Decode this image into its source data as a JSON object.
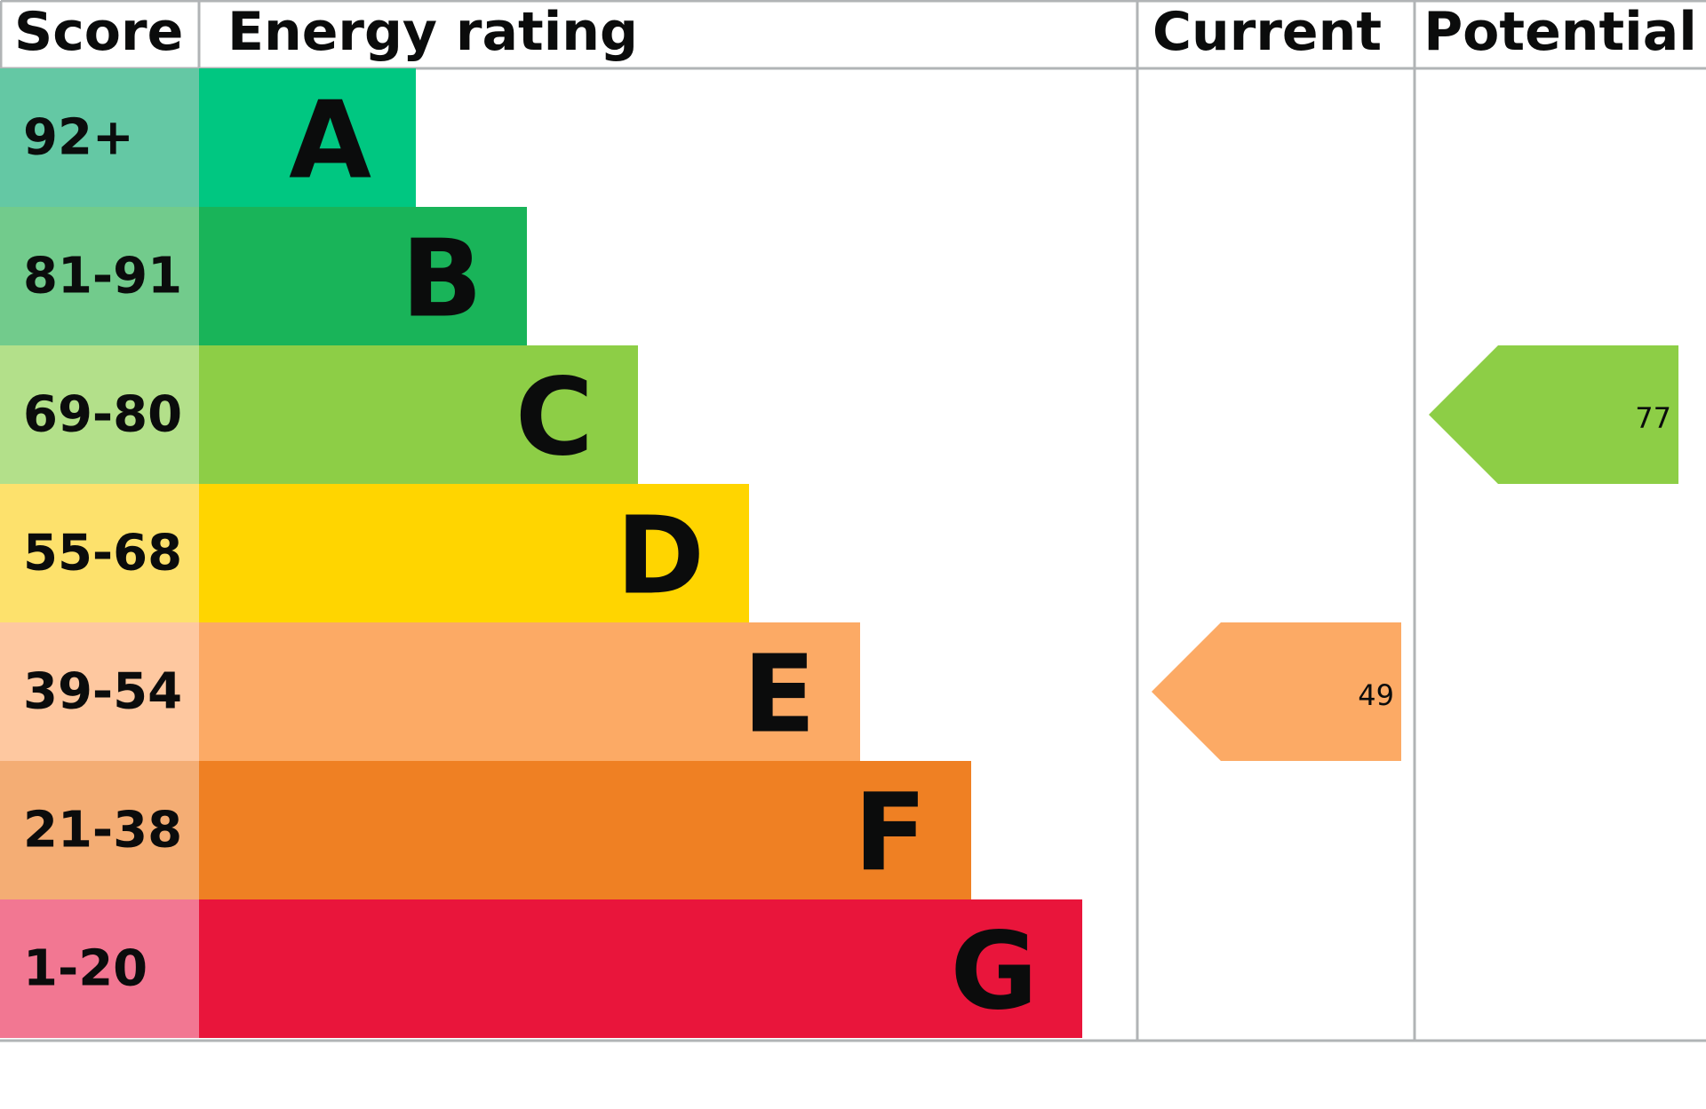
{
  "headers": {
    "score": "Score",
    "rating": "Energy rating",
    "current": "Current",
    "potential": "Potential"
  },
  "bands": [
    {
      "score": "92+",
      "letter": "A",
      "color": "#00c781",
      "score_color": "#64c8a4"
    },
    {
      "score": "81-91",
      "letter": "B",
      "color": "#19b459",
      "score_color": "#72cb8c"
    },
    {
      "score": "69-80",
      "letter": "C",
      "color": "#8dce46",
      "score_color": "#b3e08a"
    },
    {
      "score": "55-68",
      "letter": "D",
      "color": "#ffd500",
      "score_color": "#fde16c"
    },
    {
      "score": "39-54",
      "letter": "E",
      "color": "#fcaa65",
      "score_color": "#fec8a0"
    },
    {
      "score": "21-38",
      "letter": "F",
      "color": "#ef8023",
      "score_color": "#f4ad74"
    },
    {
      "score": "1-20",
      "letter": "G",
      "color": "#e9153b",
      "score_color": "#f27792"
    }
  ],
  "current": {
    "value": 49
  },
  "potential": {
    "value": 77
  }
}
